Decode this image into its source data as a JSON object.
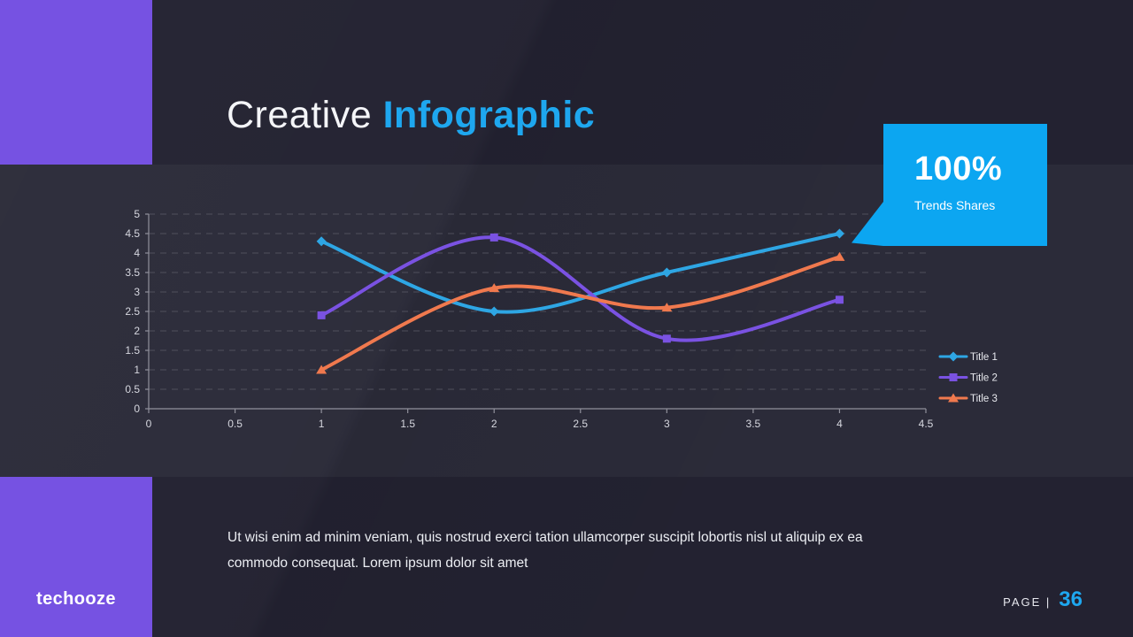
{
  "slide": {
    "title": {
      "part1": "Creative ",
      "part2": "Infographic"
    },
    "body_text": "Ut wisi enim ad minim veniam, quis nostrud exerci tation ullamcorper suscipit lobortis nisl ut aliquip ex ea commodo consequat. Lorem ipsum dolor sit amet",
    "footer": {
      "brand": "techooze",
      "page_label": "PAGE |",
      "page_number": "36"
    }
  },
  "callout": {
    "value": "100%",
    "label": "Trends Shares",
    "bg_color": "#0ca6f1"
  },
  "palette": {
    "background": "#232231",
    "chart_band": "#2b2b39",
    "accent_purple": "#7652e2",
    "accent_blue": "#1ea7ef",
    "grid_color": "#5c5c68",
    "axis_color": "#91919c",
    "tick_label_color": "#d6d7df",
    "legend_label_color": "#e9eaef"
  },
  "chart_data": {
    "type": "line",
    "x": [
      1,
      2,
      3,
      4
    ],
    "series": [
      {
        "name": "Title 1",
        "color": "#2ea6e4",
        "marker": "diamond",
        "values": [
          4.3,
          2.5,
          3.5,
          4.5
        ]
      },
      {
        "name": "Title 2",
        "color": "#7a52e2",
        "marker": "square",
        "values": [
          2.4,
          4.4,
          1.8,
          2.8
        ]
      },
      {
        "name": "Title 3",
        "color": "#f0794e",
        "marker": "triangle",
        "values": [
          1.0,
          3.1,
          2.6,
          3.9
        ]
      }
    ],
    "xlim": [
      0,
      4.5
    ],
    "ylim": [
      0,
      5
    ],
    "x_ticks": [
      "0",
      "0.5",
      "1",
      "1.5",
      "2",
      "2.5",
      "3",
      "3.5",
      "4",
      "4.5"
    ],
    "y_ticks": [
      "0",
      "0.5",
      "1",
      "1.5",
      "2",
      "2.5",
      "3",
      "3.5",
      "4",
      "4.5",
      "5"
    ],
    "grid": true,
    "grid_style": "dashed-horizontal",
    "legend_position": "right-bottom",
    "title": "",
    "xlabel": "",
    "ylabel": ""
  }
}
